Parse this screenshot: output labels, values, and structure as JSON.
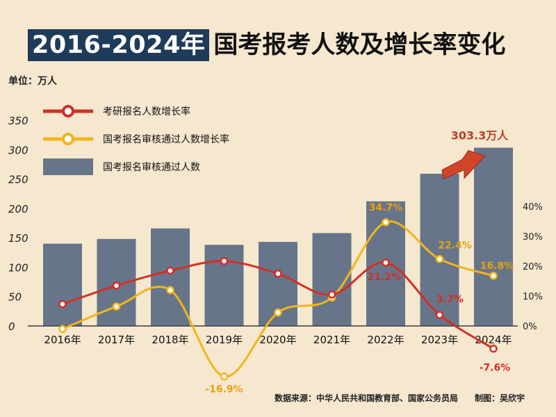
{
  "title": {
    "highlight": "2016-2024年",
    "rest": "国考报考人数及增长率变化"
  },
  "unit": "单位：万人",
  "source": "数据来源：中华人民共和国教育部、国家公务员局　　制图：吴欣宇",
  "colors": {
    "background": "#f6e7cf",
    "bar": "#67758a",
    "red_line": "#d32f24",
    "yellow_line": "#f1b619",
    "title_box": "#1f3b5a"
  },
  "chart_data": {
    "type": "bar",
    "categories": [
      "2016年",
      "2017年",
      "2018年",
      "2019年",
      "2020年",
      "2021年",
      "2022年",
      "2023年",
      "2024年"
    ],
    "series": [
      {
        "name": "国考报名审核通过人数",
        "type": "bar",
        "axis": "left",
        "values": [
          140,
          148,
          166,
          138,
          143,
          158,
          212,
          259,
          303.3
        ]
      },
      {
        "name": "考研报名人数增长率",
        "type": "line",
        "axis": "right",
        "unit": "%",
        "values": [
          7.3,
          13.5,
          18.5,
          21.7,
          17.5,
          10.5,
          21.2,
          3.7,
          -7.6
        ]
      },
      {
        "name": "国考报名审核通过人数增长率",
        "type": "line",
        "axis": "right",
        "unit": "%",
        "values": [
          -1,
          6.5,
          12,
          -16.9,
          4.5,
          9.5,
          34.7,
          22.4,
          16.8
        ]
      }
    ],
    "left_axis": {
      "range": [
        0,
        350
      ],
      "ticks": [
        "0",
        "50",
        "100",
        "150",
        "200",
        "250",
        "300",
        "350"
      ]
    },
    "right_axis": {
      "range": [
        -16.9,
        40
      ],
      "ticks": [
        "0%",
        "10%",
        "20%",
        "30%",
        "40%"
      ],
      "tick_values": [
        0,
        10,
        20,
        30,
        40
      ]
    },
    "legend": [
      "考研报名人数增长率",
      "国考报名审核通过人数增长率",
      "国考报名审核通过人数"
    ],
    "annotations": {
      "red": [
        {
          "index": 6,
          "text": "21.2%"
        },
        {
          "index": 7,
          "text": "3.7%"
        },
        {
          "index": 8,
          "text": "-7.6%"
        }
      ],
      "yellow": [
        {
          "index": 3,
          "text": "-16.9%"
        },
        {
          "index": 6,
          "text": "34.7%"
        },
        {
          "index": 7,
          "text": "22.4%"
        },
        {
          "index": 8,
          "text": "16.8%"
        }
      ],
      "bar": [
        {
          "index": 8,
          "text": "303.3万人"
        }
      ]
    }
  }
}
